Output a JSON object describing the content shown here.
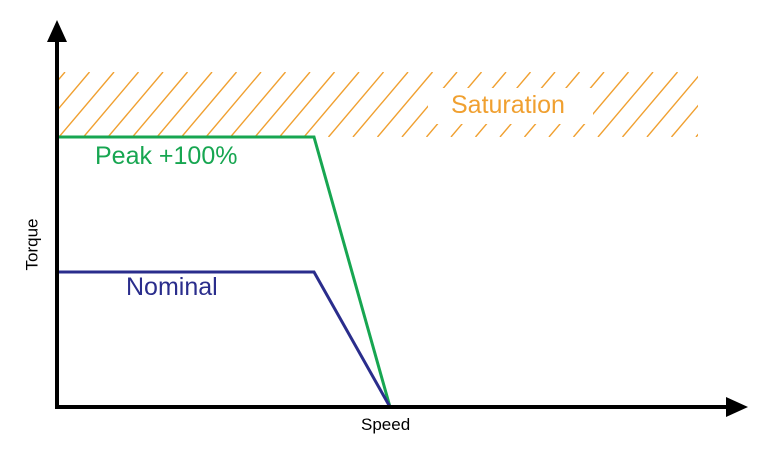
{
  "axes": {
    "x_label": "Speed",
    "y_label": "Torque"
  },
  "regions": {
    "saturation": {
      "label": "Saturation",
      "color": "#f0a030"
    }
  },
  "curves": {
    "peak": {
      "label": "Peak +100%",
      "color": "#17a651"
    },
    "nominal": {
      "label": "Nominal",
      "color": "#2a2d8c"
    }
  }
}
